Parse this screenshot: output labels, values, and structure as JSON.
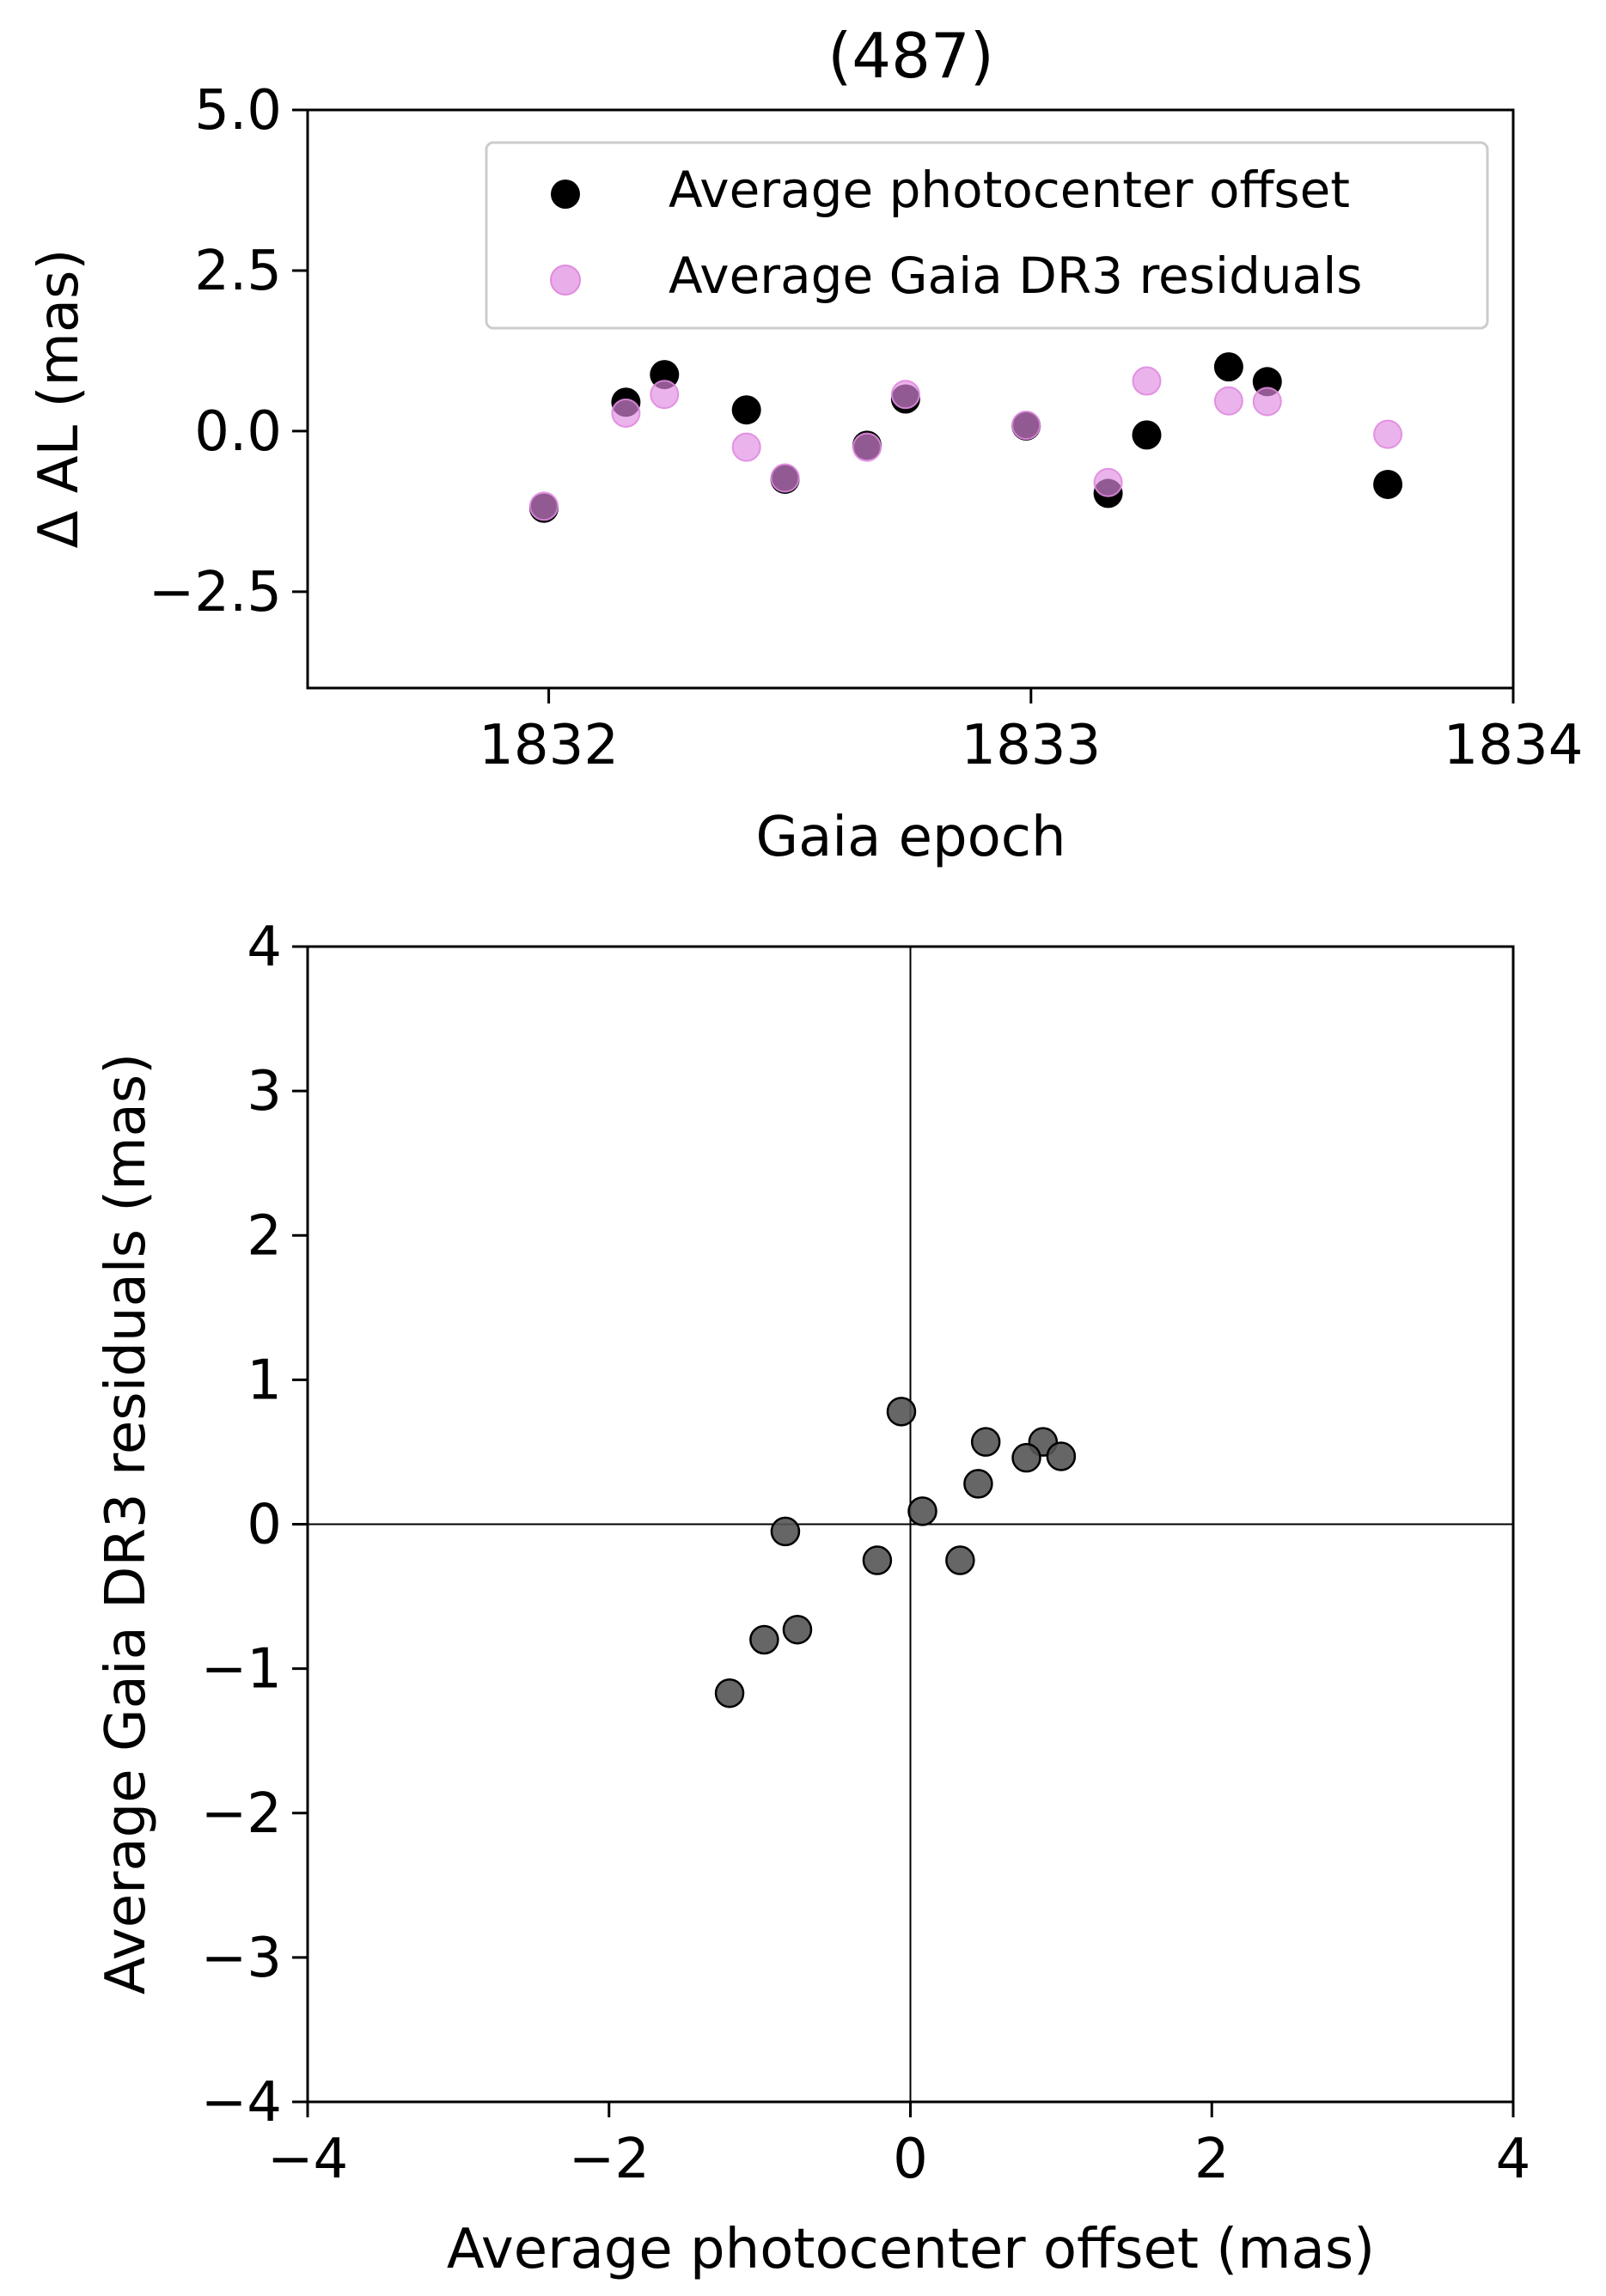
{
  "chart_data": [
    {
      "type": "scatter",
      "title": "(487)",
      "xlabel": "Gaia epoch",
      "ylabel": "Δ AL (mas)",
      "xlim": [
        1831.5,
        1834
      ],
      "ylim": [
        -4,
        5
      ],
      "xticks": [
        1832,
        1833,
        1834
      ],
      "xtick_labels": [
        "1832",
        "1833",
        "1834"
      ],
      "yticks": [
        5,
        2.5,
        0,
        -2.5
      ],
      "ytick_labels": [
        "5.0",
        "2.5",
        "0.0",
        "−2.5"
      ],
      "grid": false,
      "legend_position": "top-right",
      "series": [
        {
          "name": "Average photocenter offset",
          "color": "#000000",
          "x": [
            1831.99,
            1832.16,
            1832.24,
            1832.41,
            1832.49,
            1832.66,
            1832.74,
            1832.99,
            1833.16,
            1833.24,
            1833.41,
            1833.49,
            1833.74
          ],
          "y": [
            -1.2,
            0.45,
            0.88,
            0.33,
            -0.75,
            -0.22,
            0.5,
            0.08,
            -0.97,
            -0.06,
            1.0,
            0.77,
            -0.83
          ]
        },
        {
          "name": "Average Gaia DR3 residuals",
          "color": "#e08ae0",
          "x": [
            1831.99,
            1832.16,
            1832.24,
            1832.41,
            1832.49,
            1832.66,
            1832.74,
            1832.99,
            1833.16,
            1833.24,
            1833.41,
            1833.49,
            1833.74
          ],
          "y": [
            -1.17,
            0.28,
            0.57,
            -0.25,
            -0.73,
            -0.25,
            0.57,
            0.09,
            -0.8,
            0.78,
            0.47,
            0.46,
            -0.05
          ]
        }
      ]
    },
    {
      "type": "scatter",
      "title": "",
      "xlabel": "Average photocenter offset (mas)",
      "ylabel": "Average Gaia DR3 residuals (mas)",
      "xlim": [
        -4,
        4
      ],
      "ylim": [
        -4,
        4
      ],
      "xticks": [
        -4,
        -2,
        0,
        2,
        4
      ],
      "xtick_labels": [
        "−4",
        "−2",
        "0",
        "2",
        "4"
      ],
      "yticks": [
        4,
        3,
        2,
        1,
        0,
        -1,
        -2,
        -3,
        -4
      ],
      "ytick_labels": [
        "4",
        "3",
        "2",
        "1",
        "0",
        "−1",
        "−2",
        "−3",
        "−4"
      ],
      "grid": false,
      "reference_lines": {
        "x": 0,
        "y": 0
      },
      "series": [
        {
          "color": "#555555",
          "x": [
            -1.2,
            0.45,
            0.88,
            0.33,
            -0.75,
            -0.22,
            0.5,
            0.08,
            -0.97,
            -0.06,
            1.0,
            0.77,
            -0.83
          ],
          "y": [
            -1.17,
            0.28,
            0.57,
            -0.25,
            -0.73,
            -0.25,
            0.57,
            0.09,
            -0.8,
            0.78,
            0.47,
            0.46,
            -0.05
          ]
        }
      ]
    }
  ]
}
